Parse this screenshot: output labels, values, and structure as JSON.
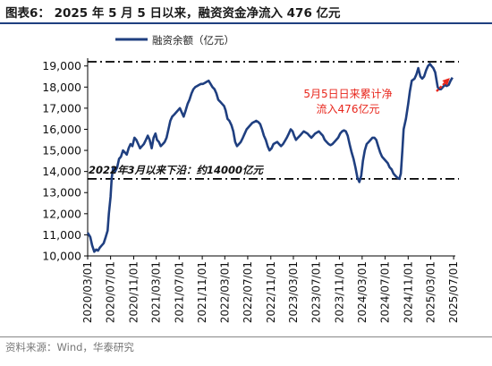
{
  "figure": {
    "title": "图表6： 2025 年 5 月 5 日以来，融资资金净流入 476 亿元",
    "source": "资料来源：Wind，华泰研究"
  },
  "chart_data": {
    "type": "line",
    "series": [
      {
        "name": "融资余额（亿元）",
        "color": "#1f3f80",
        "points": [
          [
            "2020-03-01",
            11100
          ],
          [
            "2020-03-15",
            10900
          ],
          [
            "2020-03-25",
            10500
          ],
          [
            "2020-04-05",
            10200
          ],
          [
            "2020-04-15",
            10300
          ],
          [
            "2020-04-25",
            10250
          ],
          [
            "2020-05-05",
            10400
          ],
          [
            "2020-05-15",
            10500
          ],
          [
            "2020-05-25",
            10600
          ],
          [
            "2020-06-05",
            10900
          ],
          [
            "2020-06-15",
            11200
          ],
          [
            "2020-06-22",
            12000
          ],
          [
            "2020-07-01",
            12800
          ],
          [
            "2020-07-07",
            13700
          ],
          [
            "2020-07-15",
            14200
          ],
          [
            "2020-07-25",
            14000
          ],
          [
            "2020-08-05",
            14200
          ],
          [
            "2020-08-15",
            14600
          ],
          [
            "2020-08-25",
            14700
          ],
          [
            "2020-09-05",
            15000
          ],
          [
            "2020-09-15",
            14900
          ],
          [
            "2020-09-25",
            14800
          ],
          [
            "2020-10-05",
            15100
          ],
          [
            "2020-10-15",
            15300
          ],
          [
            "2020-10-25",
            15200
          ],
          [
            "2020-11-05",
            15600
          ],
          [
            "2020-11-15",
            15500
          ],
          [
            "2020-11-25",
            15300
          ],
          [
            "2020-12-05",
            15100
          ],
          [
            "2020-12-15",
            15200
          ],
          [
            "2020-12-25",
            15300
          ],
          [
            "2021-01-05",
            15500
          ],
          [
            "2021-01-15",
            15700
          ],
          [
            "2021-01-25",
            15500
          ],
          [
            "2021-02-05",
            15100
          ],
          [
            "2021-02-15",
            15600
          ],
          [
            "2021-02-25",
            15800
          ],
          [
            "2021-03-05",
            15500
          ],
          [
            "2021-03-15",
            15400
          ],
          [
            "2021-03-25",
            15200
          ],
          [
            "2021-04-05",
            15300
          ],
          [
            "2021-04-15",
            15400
          ],
          [
            "2021-04-25",
            15600
          ],
          [
            "2021-05-05",
            16000
          ],
          [
            "2021-05-15",
            16400
          ],
          [
            "2021-05-25",
            16600
          ],
          [
            "2021-06-05",
            16700
          ],
          [
            "2021-06-15",
            16800
          ],
          [
            "2021-06-25",
            16900
          ],
          [
            "2021-07-05",
            17000
          ],
          [
            "2021-07-15",
            16800
          ],
          [
            "2021-07-25",
            16600
          ],
          [
            "2021-08-05",
            16900
          ],
          [
            "2021-08-15",
            17200
          ],
          [
            "2021-08-25",
            17400
          ],
          [
            "2021-09-05",
            17700
          ],
          [
            "2021-09-15",
            17900
          ],
          [
            "2021-09-25",
            18000
          ],
          [
            "2021-10-05",
            18050
          ],
          [
            "2021-10-15",
            18100
          ],
          [
            "2021-10-25",
            18150
          ],
          [
            "2021-11-05",
            18150
          ],
          [
            "2021-11-15",
            18200
          ],
          [
            "2021-11-25",
            18250
          ],
          [
            "2021-12-05",
            18300
          ],
          [
            "2021-12-15",
            18150
          ],
          [
            "2021-12-25",
            18000
          ],
          [
            "2022-01-05",
            17900
          ],
          [
            "2022-01-15",
            17700
          ],
          [
            "2022-01-25",
            17400
          ],
          [
            "2022-02-05",
            17300
          ],
          [
            "2022-02-15",
            17200
          ],
          [
            "2022-02-25",
            17100
          ],
          [
            "2022-03-05",
            16900
          ],
          [
            "2022-03-15",
            16500
          ],
          [
            "2022-03-25",
            16400
          ],
          [
            "2022-04-05",
            16200
          ],
          [
            "2022-04-15",
            15900
          ],
          [
            "2022-04-25",
            15400
          ],
          [
            "2022-05-05",
            15200
          ],
          [
            "2022-05-15",
            15300
          ],
          [
            "2022-05-25",
            15400
          ],
          [
            "2022-06-05",
            15600
          ],
          [
            "2022-06-15",
            15800
          ],
          [
            "2022-06-25",
            16000
          ],
          [
            "2022-07-05",
            16100
          ],
          [
            "2022-07-15",
            16200
          ],
          [
            "2022-07-25",
            16300
          ],
          [
            "2022-08-05",
            16350
          ],
          [
            "2022-08-15",
            16400
          ],
          [
            "2022-08-25",
            16350
          ],
          [
            "2022-09-05",
            16250
          ],
          [
            "2022-09-15",
            16000
          ],
          [
            "2022-09-25",
            15700
          ],
          [
            "2022-10-05",
            15500
          ],
          [
            "2022-10-15",
            15200
          ],
          [
            "2022-10-25",
            15000
          ],
          [
            "2022-11-05",
            15100
          ],
          [
            "2022-11-15",
            15300
          ],
          [
            "2022-11-25",
            15350
          ],
          [
            "2022-12-05",
            15400
          ],
          [
            "2022-12-15",
            15300
          ],
          [
            "2022-12-25",
            15200
          ],
          [
            "2023-01-05",
            15300
          ],
          [
            "2023-01-15",
            15450
          ],
          [
            "2023-01-25",
            15600
          ],
          [
            "2023-02-05",
            15800
          ],
          [
            "2023-02-15",
            16000
          ],
          [
            "2023-02-25",
            15900
          ],
          [
            "2023-03-05",
            15700
          ],
          [
            "2023-03-15",
            15500
          ],
          [
            "2023-03-25",
            15600
          ],
          [
            "2023-04-05",
            15700
          ],
          [
            "2023-04-15",
            15800
          ],
          [
            "2023-04-25",
            15900
          ],
          [
            "2023-05-05",
            15850
          ],
          [
            "2023-05-15",
            15800
          ],
          [
            "2023-05-25",
            15700
          ],
          [
            "2023-06-05",
            15600
          ],
          [
            "2023-06-15",
            15700
          ],
          [
            "2023-06-25",
            15800
          ],
          [
            "2023-07-05",
            15850
          ],
          [
            "2023-07-15",
            15900
          ],
          [
            "2023-07-25",
            15800
          ],
          [
            "2023-08-05",
            15700
          ],
          [
            "2023-08-15",
            15500
          ],
          [
            "2023-08-25",
            15400
          ],
          [
            "2023-09-05",
            15300
          ],
          [
            "2023-09-15",
            15250
          ],
          [
            "2023-09-25",
            15300
          ],
          [
            "2023-10-05",
            15400
          ],
          [
            "2023-10-15",
            15500
          ],
          [
            "2023-10-25",
            15600
          ],
          [
            "2023-11-05",
            15800
          ],
          [
            "2023-11-15",
            15900
          ],
          [
            "2023-11-25",
            15950
          ],
          [
            "2023-12-05",
            15900
          ],
          [
            "2023-12-15",
            15700
          ],
          [
            "2023-12-25",
            15300
          ],
          [
            "2024-01-05",
            14900
          ],
          [
            "2024-01-15",
            14600
          ],
          [
            "2024-01-25",
            14200
          ],
          [
            "2024-02-05",
            13700
          ],
          [
            "2024-02-15",
            13500
          ],
          [
            "2024-02-25",
            13800
          ],
          [
            "2024-03-05",
            14500
          ],
          [
            "2024-03-15",
            15000
          ],
          [
            "2024-03-25",
            15300
          ],
          [
            "2024-04-05",
            15400
          ],
          [
            "2024-04-15",
            15500
          ],
          [
            "2024-04-25",
            15600
          ],
          [
            "2024-05-05",
            15600
          ],
          [
            "2024-05-15",
            15500
          ],
          [
            "2024-05-25",
            15200
          ],
          [
            "2024-06-05",
            14900
          ],
          [
            "2024-06-15",
            14700
          ],
          [
            "2024-06-25",
            14600
          ],
          [
            "2024-07-05",
            14500
          ],
          [
            "2024-07-15",
            14400
          ],
          [
            "2024-07-25",
            14200
          ],
          [
            "2024-08-05",
            14100
          ],
          [
            "2024-08-15",
            13900
          ],
          [
            "2024-08-25",
            13800
          ],
          [
            "2024-09-05",
            13700
          ],
          [
            "2024-09-15",
            13650
          ],
          [
            "2024-09-23",
            13900
          ],
          [
            "2024-10-01",
            15000
          ],
          [
            "2024-10-08",
            16000
          ],
          [
            "2024-10-20",
            16500
          ],
          [
            "2024-11-01",
            17200
          ],
          [
            "2024-11-10",
            17800
          ],
          [
            "2024-11-20",
            18300
          ],
          [
            "2024-12-05",
            18400
          ],
          [
            "2024-12-15",
            18600
          ],
          [
            "2024-12-25",
            18900
          ],
          [
            "2025-01-05",
            18500
          ],
          [
            "2025-01-15",
            18400
          ],
          [
            "2025-01-25",
            18500
          ],
          [
            "2025-02-05",
            18800
          ],
          [
            "2025-02-15",
            19000
          ],
          [
            "2025-02-25",
            19100
          ],
          [
            "2025-03-05",
            19000
          ],
          [
            "2025-03-15",
            18900
          ],
          [
            "2025-03-25",
            18700
          ],
          [
            "2025-04-07",
            18000
          ],
          [
            "2025-04-15",
            17900
          ],
          [
            "2025-04-25",
            17900
          ],
          [
            "2025-05-05",
            18000
          ],
          [
            "2025-05-15",
            18100
          ],
          [
            "2025-05-25",
            18050
          ],
          [
            "2025-06-05",
            18100
          ],
          [
            "2025-06-15",
            18300
          ],
          [
            "2025-06-25",
            18450
          ]
        ]
      }
    ],
    "x_ticks": [
      "2020/03/01",
      "2020/07/01",
      "2020/11/01",
      "2021/03/01",
      "2021/07/01",
      "2021/11/01",
      "2022/03/01",
      "2022/07/01",
      "2022/11/01",
      "2023/03/01",
      "2023/07/01",
      "2023/11/01",
      "2024/03/01",
      "2024/07/01",
      "2024/11/01",
      "2025/03/01",
      "2025/07/01"
    ],
    "y_ticks": [
      "10,000",
      "11,000",
      "12,000",
      "13,000",
      "14,000",
      "15,000",
      "16,000",
      "17,000",
      "18,000",
      "19,000"
    ],
    "ylim": [
      10000,
      19200
    ],
    "grid": false,
    "legend_position": "top",
    "reference_lines": [
      {
        "value": 19200,
        "style": "dash-dot",
        "color": "#000000"
      },
      {
        "value": 13650,
        "style": "dash-dot",
        "color": "#000000",
        "label": "2022年3月以来下沿：约14000亿元"
      }
    ],
    "annotations": [
      {
        "text": [
          "5月5日日来累计净",
          "流入476亿元"
        ],
        "color": "#e8261c"
      }
    ]
  }
}
